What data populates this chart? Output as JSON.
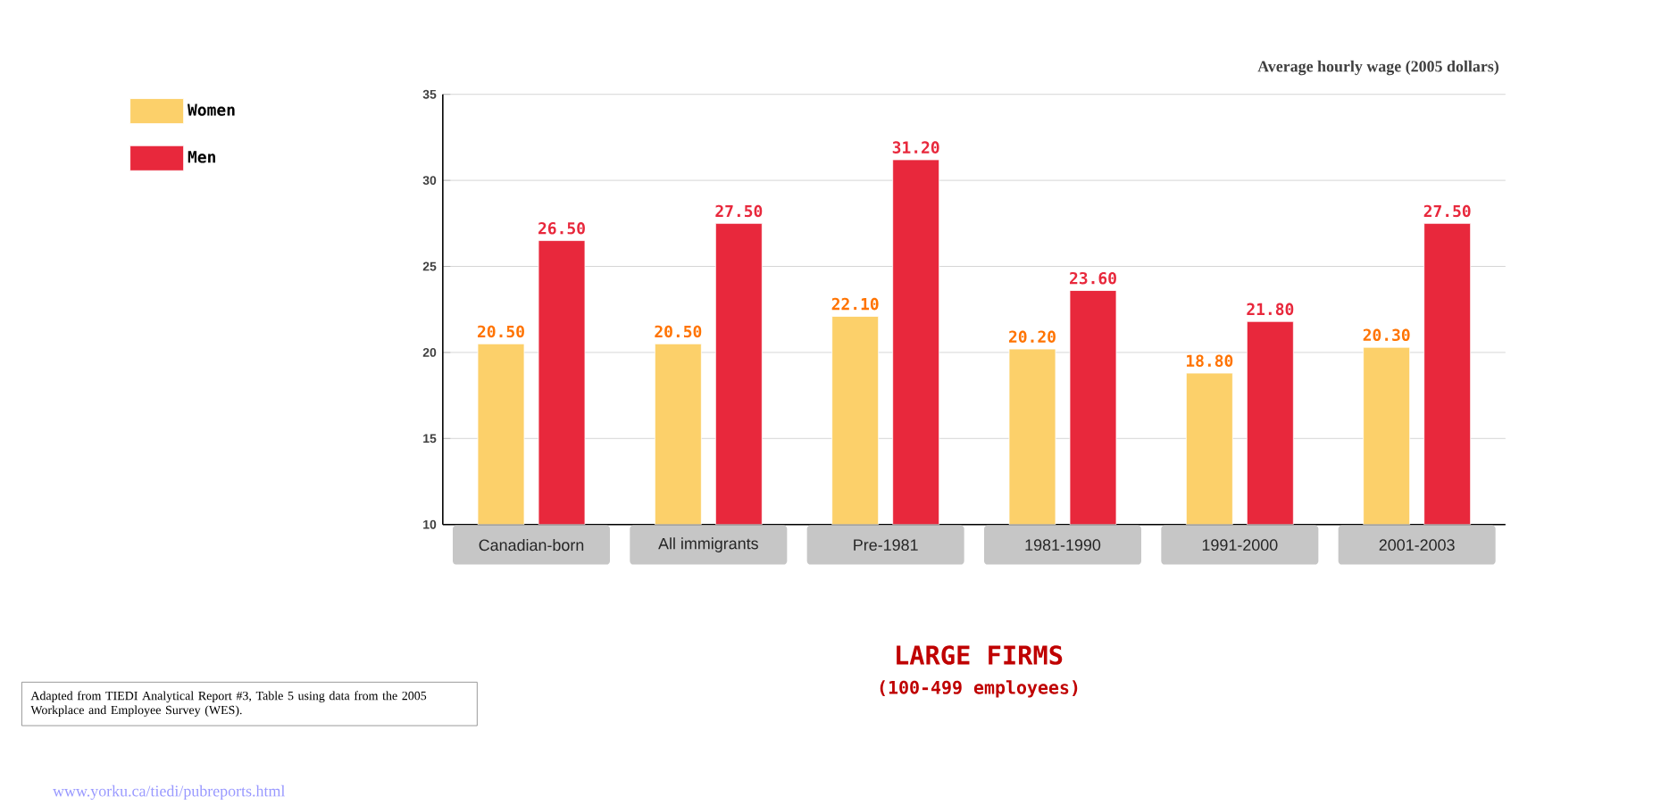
{
  "chart_data": {
    "type": "bar",
    "title": "LARGE FIRMS",
    "subtitle": "(100-499 employees)",
    "ylabel": "Average hourly wage (2005 dollars)",
    "categories": [
      "Canadian-born",
      "All immigrants",
      "Pre-1981",
      "1981-1990",
      "1991-2000",
      "2001-2003"
    ],
    "series": [
      {
        "name": "Women",
        "color": "#fcd06a",
        "values": [
          20.5,
          20.5,
          22.1,
          20.2,
          18.8,
          20.3
        ],
        "value_labels": [
          "20.50",
          "20.50",
          "22.10",
          "20.20",
          "18.80",
          "20.30"
        ]
      },
      {
        "name": "Men",
        "color": "#e8283c",
        "values": [
          26.5,
          27.5,
          31.2,
          23.6,
          21.8,
          27.5
        ],
        "value_labels": [
          "26.50",
          "27.50",
          "31.20",
          "23.60",
          "21.80",
          "27.50"
        ]
      }
    ],
    "ylim": [
      10,
      35
    ],
    "yticks": [
      10,
      15,
      20,
      25,
      30,
      35
    ],
    "grid": "y",
    "legend": "top left",
    "annotations": [
      "Adapted from TIEDI Analytical Report #3, Table 5 using data from the 2005 Workplace and Employee Survey (WES).",
      "www.yorku.ca/tiedi/pubreports.html"
    ]
  }
}
